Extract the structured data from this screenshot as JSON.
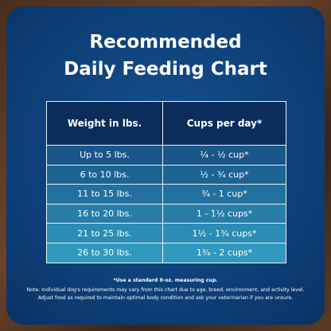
{
  "title": {
    "line1": "Recommended",
    "line2": "Daily Feeding Chart"
  },
  "table": {
    "header": [
      "Weight in lbs.",
      "Cups per day*"
    ],
    "rows": [
      [
        "Up to 5 lbs.",
        "¼ - ½ cup*"
      ],
      [
        "6 to 10 lbs.",
        "½ - ¾ cup*"
      ],
      [
        "11 to 15 lbs.",
        "¾ - 1 cup*"
      ],
      [
        "16 to 20 lbs.",
        "1 - 1½ cups*"
      ],
      [
        "21 to 25 lbs.",
        "1½ - 1¾ cups*"
      ],
      [
        "26 to 30 lbs.",
        "1¾ - 2 cups*"
      ]
    ]
  },
  "notes": [
    "*Use a standard 8-oz. measuring cup.",
    "Note: Individual dog's requirements may vary from this chart due to age, breed, environment, and activity level.",
    "Adjust food as required to maintain optimal body condition and ask your veterinarian if you are unsure."
  ]
}
